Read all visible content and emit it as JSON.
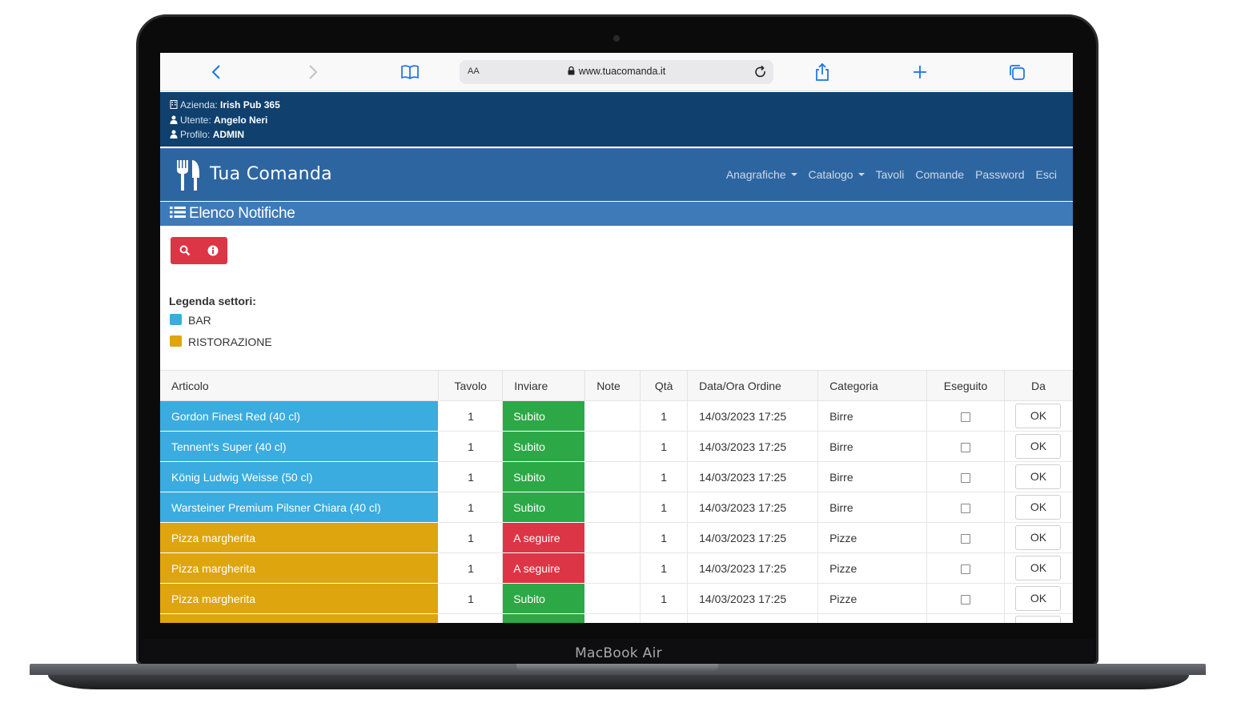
{
  "device": {
    "label": "MacBook Air"
  },
  "browser": {
    "aa_label": "AA",
    "url": "www.tuacomanda.it"
  },
  "info": {
    "azienda_label": "Azienda:",
    "azienda_value": "Irish Pub 365",
    "utente_label": "Utente:",
    "utente_value": "Angelo Neri",
    "profilo_label": "Profilo:",
    "profilo_value": "ADMIN"
  },
  "navbar": {
    "brand": "Tua Comanda",
    "links": [
      {
        "label": "Anagrafiche",
        "dropdown": true
      },
      {
        "label": "Catalogo",
        "dropdown": true
      },
      {
        "label": "Tavoli",
        "dropdown": false
      },
      {
        "label": "Comande",
        "dropdown": false
      },
      {
        "label": "Password",
        "dropdown": false
      },
      {
        "label": "Esci",
        "dropdown": false
      }
    ]
  },
  "page": {
    "title": "Elenco Notifiche"
  },
  "actions": {
    "icons": [
      "search-icon",
      "info-icon"
    ]
  },
  "legend": {
    "title": "Legenda settori:",
    "items": [
      {
        "label": "BAR",
        "color": "#3aacdf"
      },
      {
        "label": "RISTORAZIONE",
        "color": "#dea50f"
      }
    ]
  },
  "table": {
    "headers": {
      "articolo": "Articolo",
      "tavolo": "Tavolo",
      "inviare": "Inviare",
      "note": "Note",
      "qta": "Qtà",
      "data": "Data/Ora Ordine",
      "categoria": "Categoria",
      "eseguito": "Eseguito",
      "da": "Da"
    },
    "ok_label": "OK",
    "rows": [
      {
        "articolo": "Gordon Finest Red (40 cl)",
        "settore": "bar",
        "tavolo": "1",
        "inviare": "Subito",
        "inviare_status": "green",
        "note": "",
        "qta": "1",
        "data": "14/03/2023 17:25",
        "categoria": "Birre"
      },
      {
        "articolo": "Tennent's Super (40 cl)",
        "settore": "bar",
        "tavolo": "1",
        "inviare": "Subito",
        "inviare_status": "green",
        "note": "",
        "qta": "1",
        "data": "14/03/2023 17:25",
        "categoria": "Birre"
      },
      {
        "articolo": "König Ludwig Weisse (50 cl)",
        "settore": "bar",
        "tavolo": "1",
        "inviare": "Subito",
        "inviare_status": "green",
        "note": "",
        "qta": "1",
        "data": "14/03/2023 17:25",
        "categoria": "Birre"
      },
      {
        "articolo": "Warsteiner Premium Pilsner Chiara (40 cl)",
        "settore": "bar",
        "tavolo": "1",
        "inviare": "Subito",
        "inviare_status": "green",
        "note": "",
        "qta": "1",
        "data": "14/03/2023 17:25",
        "categoria": "Birre"
      },
      {
        "articolo": "Pizza margherita",
        "settore": "rist",
        "tavolo": "1",
        "inviare": "A seguire",
        "inviare_status": "red",
        "note": "",
        "qta": "1",
        "data": "14/03/2023 17:25",
        "categoria": "Pizze"
      },
      {
        "articolo": "Pizza margherita",
        "settore": "rist",
        "tavolo": "1",
        "inviare": "A seguire",
        "inviare_status": "red",
        "note": "",
        "qta": "1",
        "data": "14/03/2023 17:25",
        "categoria": "Pizze"
      },
      {
        "articolo": "Pizza margherita",
        "settore": "rist",
        "tavolo": "1",
        "inviare": "Subito",
        "inviare_status": "green",
        "note": "",
        "qta": "1",
        "data": "14/03/2023 17:25",
        "categoria": "Pizze"
      },
      {
        "articolo": "",
        "settore": "rist",
        "tavolo": "",
        "inviare": "",
        "inviare_status": "green",
        "note": "",
        "qta": "",
        "data": "",
        "categoria": ""
      }
    ]
  }
}
